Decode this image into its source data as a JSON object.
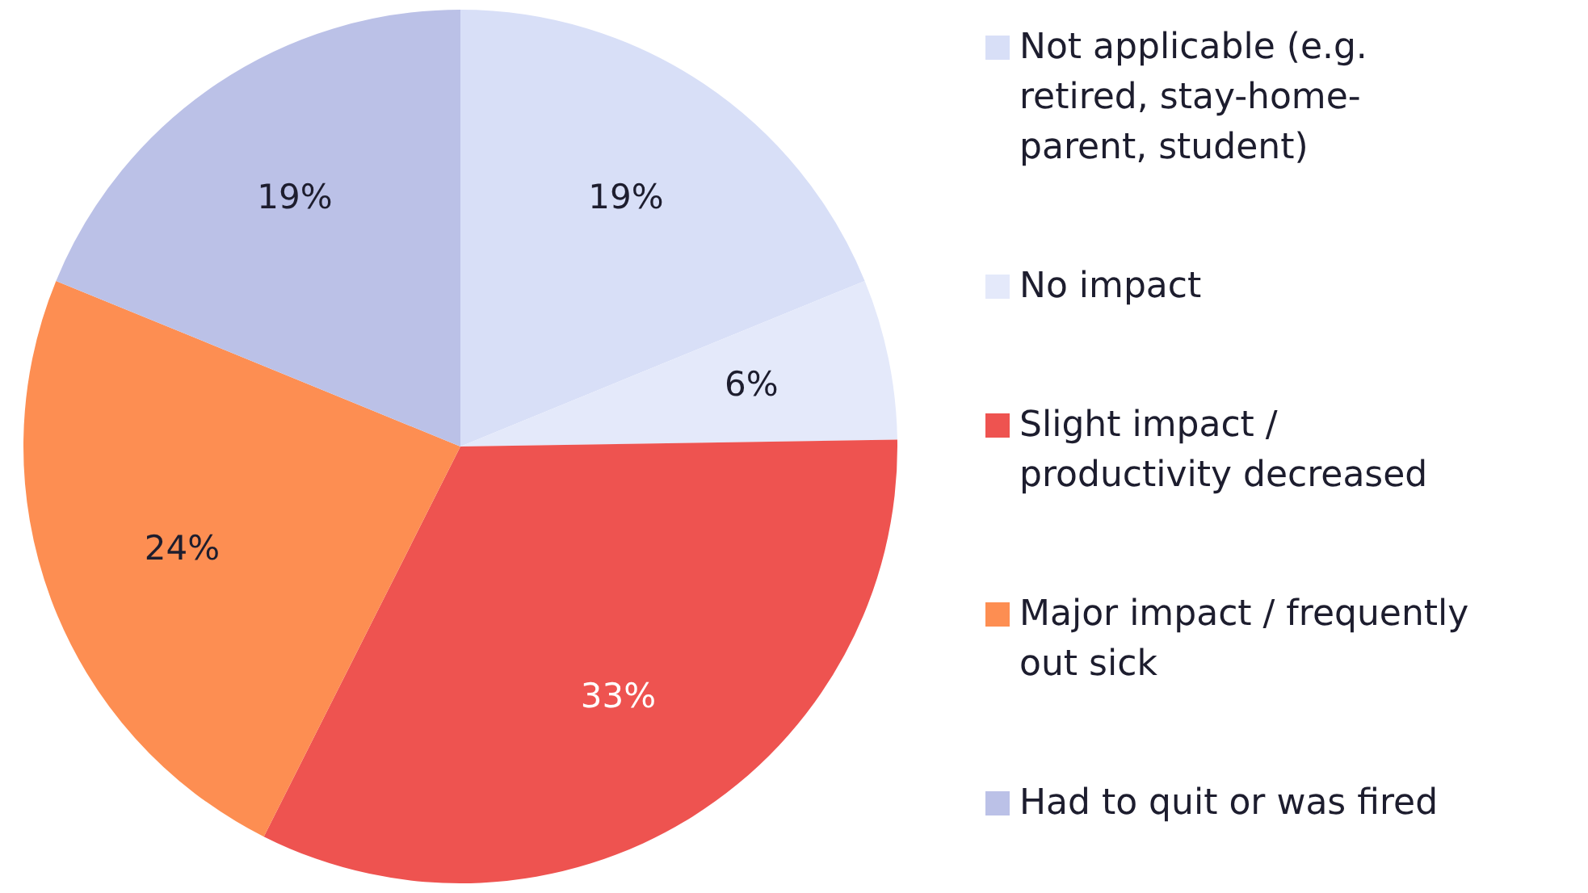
{
  "chart_data": {
    "type": "pie",
    "categories": [
      "Not applicable (e.g. retired, stay-home-parent, student)",
      "No impact",
      "Slight impact / productivity decreased",
      "Major impact / frequently out sick",
      "Had to quit or was fired"
    ],
    "values": [
      19,
      6,
      33,
      24,
      19
    ],
    "value_labels": [
      "19%",
      "6%",
      "33%",
      "24%",
      "19%"
    ],
    "colors": [
      "#d8dff7",
      "#e4e9fa",
      "#ee5350",
      "#fd8e52",
      "#bbc1e7"
    ],
    "legend": "right"
  }
}
